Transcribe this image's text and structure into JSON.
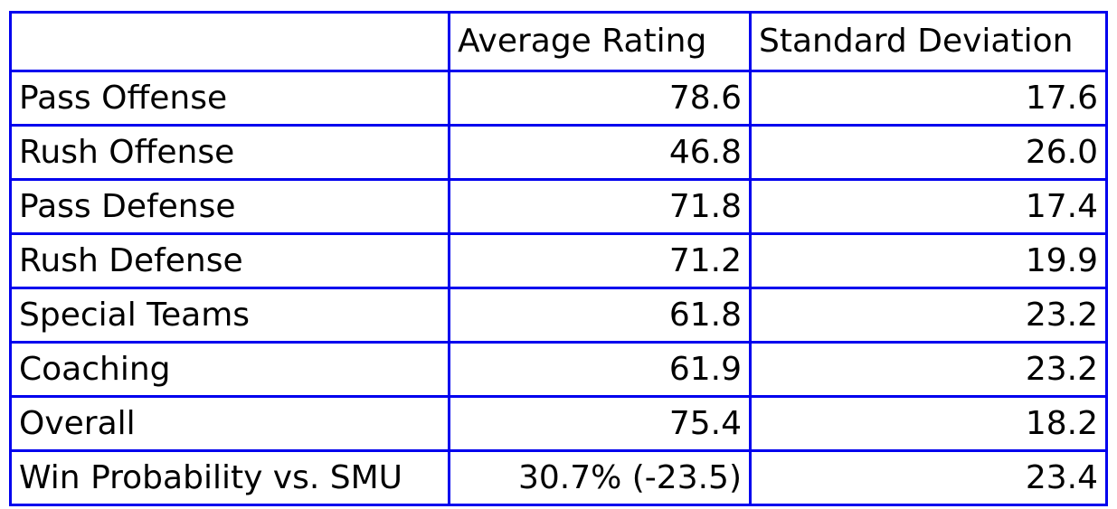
{
  "page": {
    "background_color": "#ffffff",
    "border_color": "#0000ee",
    "text_color": "#000000"
  },
  "table": {
    "header": {
      "label": "",
      "average_rating": "Average Rating",
      "standard_deviation": "Standard Deviation"
    },
    "rows": [
      {
        "label": "Pass Offense",
        "average_rating": "78.6",
        "standard_deviation": "17.6"
      },
      {
        "label": "Rush Offense",
        "average_rating": "46.8",
        "standard_deviation": "26.0"
      },
      {
        "label": "Pass Defense",
        "average_rating": "71.8",
        "standard_deviation": "17.4"
      },
      {
        "label": "Rush Defense",
        "average_rating": "71.2",
        "standard_deviation": "19.9"
      },
      {
        "label": "Special Teams",
        "average_rating": "61.8",
        "standard_deviation": "23.2"
      },
      {
        "label": "Coaching",
        "average_rating": "61.9",
        "standard_deviation": "23.2"
      },
      {
        "label": "Overall",
        "average_rating": "75.4",
        "standard_deviation": "18.2"
      },
      {
        "label": "Win Probability vs. SMU",
        "average_rating": "30.7% (-23.5)",
        "standard_deviation": "23.4"
      }
    ]
  },
  "chart_data": {
    "type": "table",
    "title": "",
    "columns": [
      "",
      "Average Rating",
      "Standard Deviation"
    ],
    "rows": [
      [
        "Pass Offense",
        "78.6",
        "17.6"
      ],
      [
        "Rush Offense",
        "46.8",
        "26.0"
      ],
      [
        "Pass Defense",
        "71.8",
        "17.4"
      ],
      [
        "Rush Defense",
        "71.2",
        "19.9"
      ],
      [
        "Special Teams",
        "61.8",
        "23.2"
      ],
      [
        "Coaching",
        "61.9",
        "23.2"
      ],
      [
        "Overall",
        "75.4",
        "18.2"
      ],
      [
        "Win Probability vs. SMU",
        "30.7% (-23.5)",
        "23.4"
      ]
    ],
    "notes": {
      "average_rating_numeric": [
        78.6,
        46.8,
        71.8,
        71.2,
        61.8,
        61.9,
        75.4
      ],
      "standard_deviation_numeric": [
        17.6,
        26.0,
        17.4,
        19.9,
        23.2,
        23.2,
        18.2,
        23.4
      ],
      "win_probability_pct": 30.7,
      "win_probability_margin": -23.5
    }
  }
}
